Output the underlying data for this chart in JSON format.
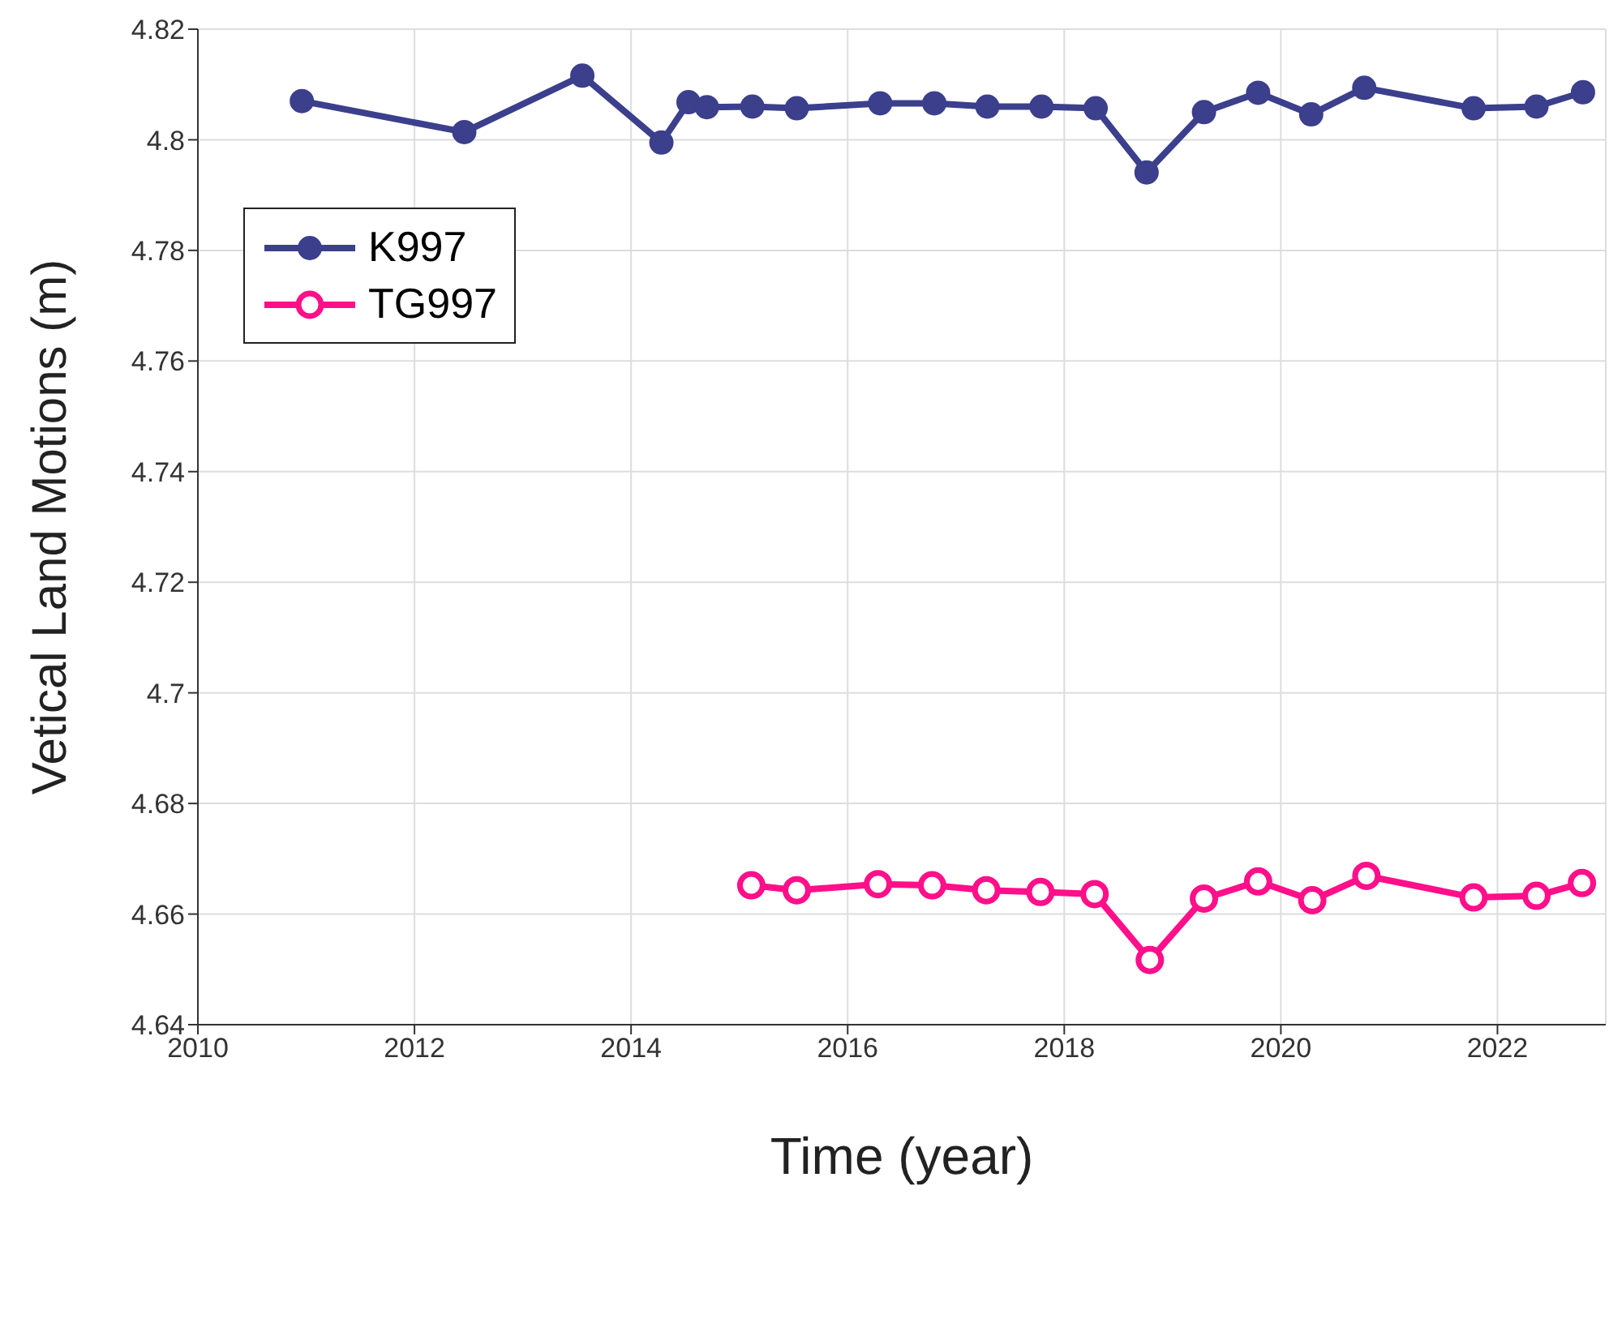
{
  "chart_data": {
    "type": "line",
    "xlabel": "Time (year)",
    "ylabel": "Vetical Land Motions (m)",
    "xlim": [
      2010,
      2023
    ],
    "xticks": [
      2010,
      2012,
      2014,
      2016,
      2018,
      2020,
      2022
    ],
    "ylim": [
      4.64,
      4.82
    ],
    "yticks": [
      4.64,
      4.66,
      4.68,
      4.7,
      4.72,
      4.74,
      4.76,
      4.78,
      4.8,
      4.82
    ],
    "grid": true,
    "legend": "top left",
    "marker": "circle",
    "line_style": "solid",
    "series": [
      {
        "name": "K997",
        "color": "#3b3f8c",
        "x": [
          2010.96,
          2012.46,
          2013.55,
          2014.28,
          2014.53,
          2014.7,
          2015.12,
          2015.53,
          2016.3,
          2016.8,
          2017.29,
          2017.79,
          2018.29,
          2018.76,
          2019.29,
          2019.79,
          2020.28,
          2020.77,
          2021.78,
          2022.36,
          2022.79
        ],
        "values": [
          4.807,
          4.8014,
          4.8116,
          4.7995,
          4.8068,
          4.8059,
          4.806,
          4.8057,
          4.8066,
          4.8066,
          4.806,
          4.806,
          4.8057,
          4.7941,
          4.805,
          4.8085,
          4.8046,
          4.8094,
          4.8057,
          4.806,
          4.8086
        ]
      },
      {
        "name": "TG997",
        "color": "#ff0f8a",
        "x": [
          2015.11,
          2015.53,
          2016.28,
          2016.78,
          2017.28,
          2017.78,
          2018.28,
          2018.79,
          2019.29,
          2019.79,
          2020.29,
          2020.79,
          2021.78,
          2022.36,
          2022.78
        ],
        "values": [
          4.6652,
          4.6643,
          4.6654,
          4.6652,
          4.6643,
          4.664,
          4.6636,
          4.6517,
          4.6628,
          4.6659,
          4.6625,
          4.6669,
          4.663,
          4.6633,
          4.6656
        ]
      }
    ]
  }
}
